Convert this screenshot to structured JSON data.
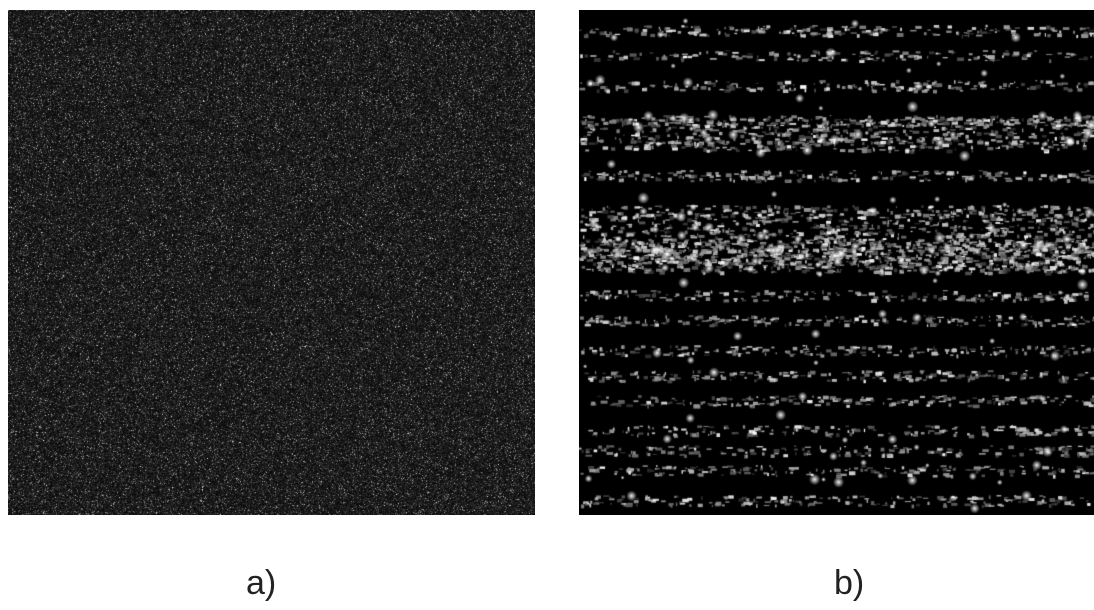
{
  "figure": {
    "panel_a": {
      "caption": "a)",
      "texture": "uniform-speckle-noise",
      "base_color": "#262626"
    },
    "panel_b": {
      "caption": "b)",
      "texture": "sparse-bright-speckle-horizontal-bands",
      "base_color": "#000000"
    }
  }
}
